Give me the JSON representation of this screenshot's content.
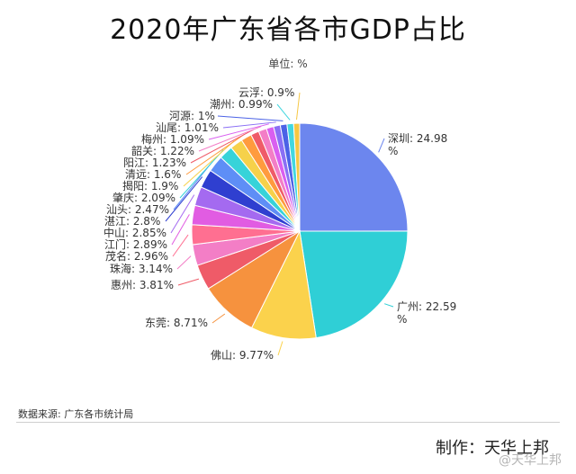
{
  "title": "2020年广东省各市GDP占比",
  "unit_label": "单位: %",
  "source": "数据来源: 广东各市统计局",
  "maker": "制作：天华上邦",
  "watermark": "@天华上邦",
  "chart_data": {
    "type": "pie",
    "title": "2020年广东省各市GDP占比",
    "unit": "%",
    "slices": [
      {
        "name": "深圳",
        "value": 24.98,
        "color": "#6c86ee"
      },
      {
        "name": "广州",
        "value": 22.59,
        "color": "#2fcfd6"
      },
      {
        "name": "佛山",
        "value": 9.77,
        "color": "#fbd24c"
      },
      {
        "name": "东莞",
        "value": 8.71,
        "color": "#f6923e"
      },
      {
        "name": "惠州",
        "value": 3.81,
        "color": "#ef5b68"
      },
      {
        "name": "珠海",
        "value": 3.14,
        "color": "#f37ec6"
      },
      {
        "name": "茂名",
        "value": 2.96,
        "color": "#ff6f91"
      },
      {
        "name": "江门",
        "value": 2.89,
        "color": "#e15ce2"
      },
      {
        "name": "中山",
        "value": 2.85,
        "color": "#a46af0"
      },
      {
        "name": "湛江",
        "value": 2.8,
        "color": "#2f3fd0"
      },
      {
        "name": "汕头",
        "value": 2.47,
        "color": "#5e8ef6"
      },
      {
        "name": "肇庆",
        "value": 2.09,
        "color": "#37d3d9"
      },
      {
        "name": "揭阳",
        "value": 1.9,
        "color": "#f6d14a"
      },
      {
        "name": "清远",
        "value": 1.6,
        "color": "#ff9b3e"
      },
      {
        "name": "阳江",
        "value": 1.23,
        "color": "#ef5b68"
      },
      {
        "name": "韶关",
        "value": 1.22,
        "color": "#f37ec6"
      },
      {
        "name": "梅州",
        "value": 1.09,
        "color": "#d95ff0"
      },
      {
        "name": "汕尾",
        "value": 1.01,
        "color": "#8a6ff5"
      },
      {
        "name": "河源",
        "value": 1,
        "color": "#4b62e6"
      },
      {
        "name": "潮州",
        "value": 0.99,
        "color": "#42d7e0"
      },
      {
        "name": "云浮",
        "value": 0.9,
        "color": "#f6c743"
      }
    ]
  }
}
